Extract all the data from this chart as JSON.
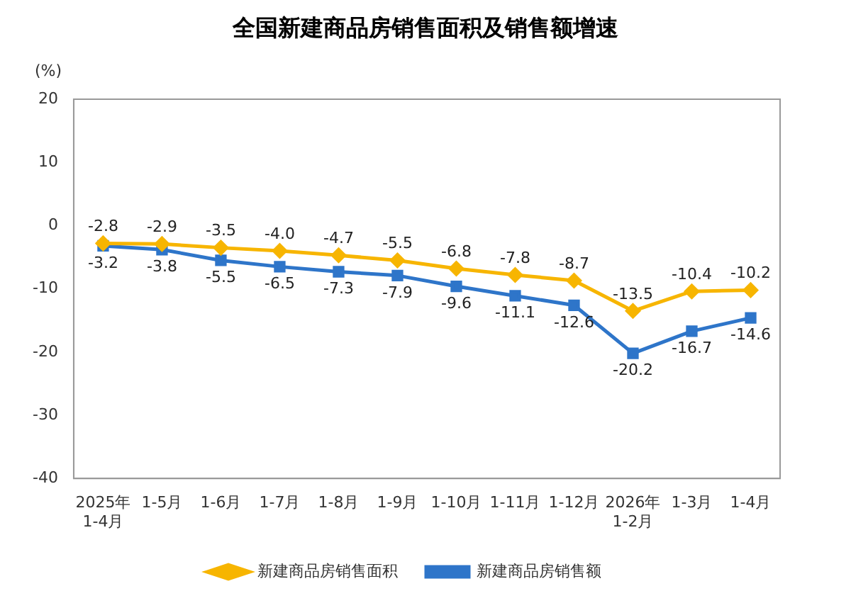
{
  "chart_data": {
    "type": "line",
    "title": "全国新建商品房销售面积及销售额增速",
    "ylabel": "(%)",
    "categories": [
      "2025年\n1-4月",
      "1-5月",
      "1-6月",
      "1-7月",
      "1-8月",
      "1-9月",
      "1-10月",
      "1-11月",
      "1-12月",
      "2026年\n1-2月",
      "1-3月",
      "1-4月"
    ],
    "series": [
      {
        "name": "新建商品房销售面积",
        "color": "#f7b500",
        "marker": "diamond",
        "values": [
          -2.8,
          -2.9,
          -3.5,
          -4.0,
          -4.7,
          -5.5,
          -6.8,
          -7.8,
          -8.7,
          -13.5,
          -10.4,
          -10.2
        ],
        "value_labels": [
          "-2.8",
          "-2.9",
          "-3.5",
          "-4.0",
          "-4.7",
          "-5.5",
          "-6.8",
          "-7.8",
          "-8.7",
          "-13.5",
          "-10.4",
          "-10.2"
        ]
      },
      {
        "name": "新建商品房销售额",
        "color": "#2e75c9",
        "marker": "square",
        "values": [
          -3.2,
          -3.8,
          -5.5,
          -6.5,
          -7.3,
          -7.9,
          -9.6,
          -11.1,
          -12.6,
          -20.2,
          -16.7,
          -14.6
        ],
        "value_labels": [
          "-3.2",
          "-3.8",
          "-5.5",
          "-6.5",
          "-7.3",
          "-7.9",
          "-9.6",
          "-11.1",
          "-12.6",
          "-20.2",
          "-16.7",
          "-14.6"
        ]
      }
    ],
    "ylim": [
      -40,
      20
    ],
    "yticks": [
      -40,
      -30,
      -20,
      -10,
      0,
      10,
      20
    ],
    "grid": false,
    "legend": "bottom",
    "line_style": "solid"
  }
}
